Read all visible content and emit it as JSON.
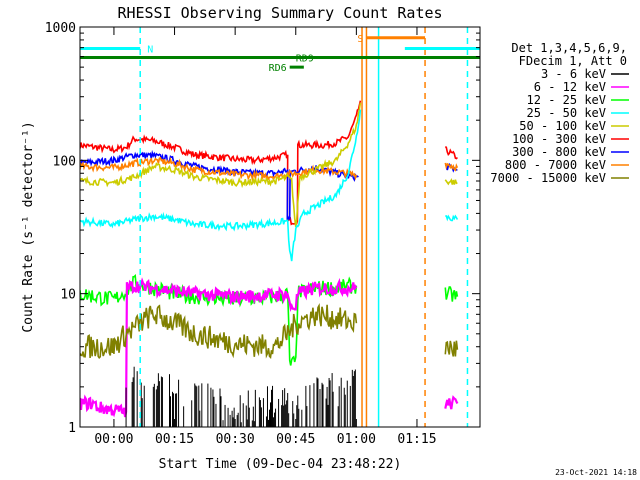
{
  "chart_data": {
    "type": "line",
    "title": "RHESSI Observing Summary Count Rates",
    "xlabel": "Start Time (09-Dec-04 23:48:22)",
    "ylabel": "Count Rate (s⁻¹ detector⁻¹)",
    "y_scale": "log",
    "ylim": [
      1,
      1000
    ],
    "x_range_min": [
      -8.4,
      90.6
    ],
    "x_ticks": [
      "00:00",
      "00:15",
      "00:30",
      "00:45",
      "01:00",
      "01:15"
    ],
    "x_tick_min": [
      0,
      15,
      30,
      45,
      60,
      75
    ],
    "y_ticks": [
      "1",
      "10",
      "100",
      "1000"
    ],
    "y_tick_values": [
      1,
      10,
      100,
      1000
    ],
    "legend": {
      "placement": "right",
      "header": [
        "Det 1,3,4,5,6,9,",
        "FDecim 1, Att 0"
      ],
      "entries": [
        {
          "label": "3 - 6 keV",
          "color": "#000000"
        },
        {
          "label": "6 - 12 keV",
          "color": "#ff00ff"
        },
        {
          "label": "12 - 25 keV",
          "color": "#00ff00"
        },
        {
          "label": "25 - 50 keV",
          "color": "#00ffff"
        },
        {
          "label": "50 - 100 keV",
          "color": "#cccc00"
        },
        {
          "label": "100 - 300 keV",
          "color": "#ff0000"
        },
        {
          "label": "300 - 800 keV",
          "color": "#0000ff"
        },
        {
          "label": "800 - 7000 keV",
          "color": "#ff8000"
        },
        {
          "label": "7000 - 15000 keV",
          "color": "#808000"
        }
      ]
    },
    "series": [
      {
        "name": "100 - 300 keV",
        "color": "#ff0000",
        "segments": [
          [
            [
              -8.4,
              130
            ],
            [
              0,
              120
            ],
            [
              3,
              125
            ],
            [
              5,
              145
            ],
            [
              10,
              140
            ],
            [
              15,
              125
            ],
            [
              20,
              110
            ],
            [
              30,
              102
            ],
            [
              35,
              100
            ],
            [
              40,
              105
            ],
            [
              43,
              110
            ],
            [
              42.9,
              35
            ],
            [
              45.4,
              35
            ],
            [
              45.5,
              130
            ],
            [
              52,
              130
            ],
            [
              55,
              135
            ],
            [
              58,
              150
            ],
            [
              60,
              210
            ],
            [
              61,
              280
            ]
          ],
          [
            [
              82,
              120
            ],
            [
              85,
              105
            ]
          ]
        ]
      },
      {
        "name": "300 - 800 keV",
        "color": "#0000ff",
        "segments": [
          [
            [
              -8.4,
              95
            ],
            [
              0,
              100
            ],
            [
              5,
              110
            ],
            [
              10,
              108
            ],
            [
              15,
              100
            ],
            [
              20,
              90
            ],
            [
              30,
              82
            ],
            [
              35,
              80
            ],
            [
              40,
              80
            ],
            [
              43,
              85
            ],
            [
              42.9,
              36
            ],
            [
              43.5,
              36
            ],
            [
              43.6,
              82
            ],
            [
              47,
              85
            ],
            [
              50,
              88
            ],
            [
              55,
              80
            ],
            [
              58,
              76
            ],
            [
              60.5,
              75
            ]
          ],
          [
            [
              82,
              90
            ],
            [
              85,
              85
            ]
          ]
        ]
      },
      {
        "name": "800 - 7000 keV",
        "color": "#ff8000",
        "segments": [
          [
            [
              -8.4,
              90
            ],
            [
              0,
              88
            ],
            [
              5,
              95
            ],
            [
              10,
              100
            ],
            [
              15,
              95
            ],
            [
              20,
              85
            ],
            [
              30,
              78
            ],
            [
              40,
              76
            ],
            [
              45,
              80
            ],
            [
              50,
              85
            ],
            [
              55,
              82
            ],
            [
              60,
              78
            ]
          ],
          [
            [
              82,
              95
            ],
            [
              85,
              88
            ]
          ]
        ]
      },
      {
        "name": "50 - 100 keV",
        "color": "#cccc00",
        "segments": [
          [
            [
              -8.4,
              70
            ],
            [
              0,
              68
            ],
            [
              5,
              75
            ],
            [
              10,
              90
            ],
            [
              15,
              85
            ],
            [
              20,
              75
            ],
            [
              30,
              68
            ],
            [
              40,
              70
            ],
            [
              43,
              75
            ],
            [
              44,
              70
            ],
            [
              45,
              30
            ],
            [
              46,
              75
            ],
            [
              50,
              85
            ],
            [
              55,
              100
            ],
            [
              58,
              135
            ],
            [
              60,
              180
            ],
            [
              61,
              270
            ]
          ],
          [
            [
              82,
              70
            ],
            [
              85,
              68
            ]
          ]
        ]
      },
      {
        "name": "25 - 50 keV",
        "color": "#00ffff",
        "segments": [
          [
            [
              -8.4,
              35
            ],
            [
              0,
              33
            ],
            [
              5,
              36
            ],
            [
              10,
              38
            ],
            [
              15,
              36
            ],
            [
              20,
              33
            ],
            [
              30,
              32
            ],
            [
              40,
              34
            ],
            [
              43,
              35
            ],
            [
              43.5,
              20
            ],
            [
              44,
              18
            ],
            [
              45,
              30
            ],
            [
              47,
              40
            ],
            [
              50,
              45
            ],
            [
              55,
              55
            ],
            [
              58,
              80
            ],
            [
              60,
              150
            ],
            [
              61,
              240
            ]
          ],
          [
            [
              82,
              38
            ],
            [
              85,
              36
            ]
          ]
        ]
      },
      {
        "name": "12 - 25 keV",
        "color": "#00ff00",
        "segments": [
          [
            [
              -8.4,
              10
            ],
            [
              0,
              9
            ],
            [
              3,
              10.5
            ],
            [
              5,
              12
            ],
            [
              10,
              11
            ],
            [
              15,
              10
            ],
            [
              20,
              9.5
            ],
            [
              30,
              9
            ],
            [
              40,
              9.5
            ],
            [
              43,
              10
            ],
            [
              43.5,
              3
            ],
            [
              45,
              3
            ],
            [
              45.5,
              10
            ],
            [
              50,
              11
            ],
            [
              55,
              11
            ],
            [
              60,
              11.5
            ]
          ],
          [
            [
              82,
              10
            ],
            [
              85,
              9.5
            ]
          ]
        ]
      },
      {
        "name": "6 - 12 keV",
        "color": "#ff00ff",
        "segments": [
          [
            [
              -8.4,
              1.5
            ],
            [
              -5,
              1.5
            ],
            [
              -4,
              1.4
            ],
            [
              3,
              1.3
            ],
            [
              3.2,
              11
            ],
            [
              5,
              11.5
            ],
            [
              10,
              11
            ],
            [
              15,
              10.5
            ],
            [
              20,
              10
            ],
            [
              30,
              9.5
            ],
            [
              40,
              9.8
            ],
            [
              43,
              10
            ],
            [
              43.5,
              8
            ],
            [
              45,
              8
            ],
            [
              45.5,
              10
            ],
            [
              50,
              11
            ],
            [
              55,
              11
            ],
            [
              60,
              11
            ]
          ],
          [
            [
              82,
              1.5
            ],
            [
              85,
              1.5
            ]
          ]
        ]
      },
      {
        "name": "7000 - 15000 keV",
        "color": "#808000",
        "segments": [
          [
            [
              -8.4,
              4
            ],
            [
              0,
              4
            ],
            [
              3,
              5
            ],
            [
              5,
              5.5
            ],
            [
              8,
              6.5
            ],
            [
              10,
              7
            ],
            [
              15,
              6
            ],
            [
              20,
              5
            ],
            [
              30,
              4.2
            ],
            [
              40,
              4
            ],
            [
              43,
              5
            ],
            [
              45,
              6
            ],
            [
              50,
              7
            ],
            [
              55,
              6.5
            ],
            [
              60,
              6
            ]
          ],
          [
            [
              82,
              4
            ],
            [
              85,
              3.8
            ]
          ]
        ]
      },
      {
        "name": "3 - 6 keV",
        "color": "#000000",
        "segments": [
          [
            [
              3,
              1.8
            ],
            [
              5,
              2.2
            ],
            [
              10,
              2
            ],
            [
              15,
              1.9
            ],
            [
              20,
              1.7
            ],
            [
              25,
              1.6
            ],
            [
              30,
              1.5
            ],
            [
              35,
              1.5
            ],
            [
              40,
              1.6
            ],
            [
              45,
              1.8
            ],
            [
              50,
              2
            ],
            [
              55,
              2
            ],
            [
              60,
              2.2
            ]
          ]
        ]
      }
    ],
    "annotations": {
      "bars": [
        {
          "label": "N",
          "color": "#00ffff",
          "x_start": -8.4,
          "x_end": 6.5,
          "y": 690
        },
        {
          "label": "",
          "color": "#00ffff",
          "x_start": 72,
          "x_end": 90.6,
          "y": 690
        },
        {
          "label": "RD9",
          "color": "#008000",
          "x_start": -8.4,
          "x_end": 90.6,
          "y": 590
        },
        {
          "label": "RD6",
          "color": "#008000",
          "x_start": 43.5,
          "x_end": 47,
          "y": 500
        },
        {
          "label": "S",
          "color": "#ff8000",
          "x_start": 62.5,
          "x_end": 77,
          "y": 830
        }
      ],
      "vlines": [
        {
          "x": 6.5,
          "color": "#00ffff",
          "dashed": true
        },
        {
          "x": 61.4,
          "color": "#ff8000",
          "dashed": false
        },
        {
          "x": 62.5,
          "color": "#ff8000",
          "dashed": false
        },
        {
          "x": 65.5,
          "color": "#00ffff",
          "dashed": false
        },
        {
          "x": 77,
          "color": "#ff8000",
          "dashed": true
        },
        {
          "x": 87.5,
          "color": "#00ffff",
          "dashed": true
        }
      ]
    },
    "footer": "23-Oct-2021 14:18"
  }
}
